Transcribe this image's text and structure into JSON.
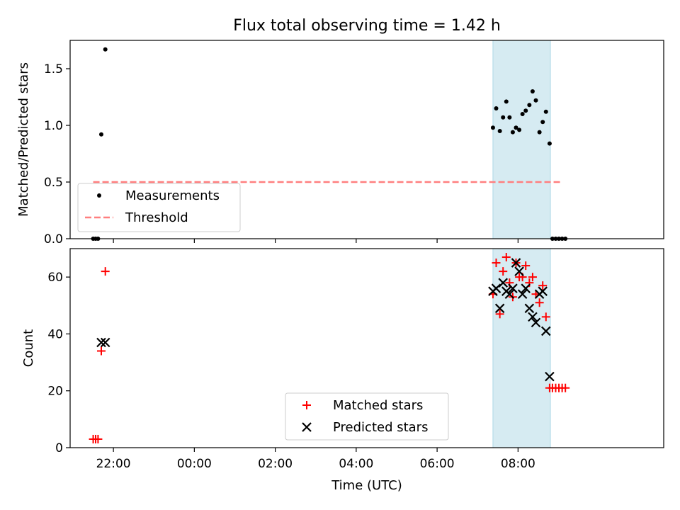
{
  "chart_data": [
    {
      "type": "scatter",
      "title": "Flux total observing time = 1.42 h",
      "ylabel": "Matched/Predicted stars",
      "xlabel": "",
      "x_unit": "hours relative to 00:00 UTC",
      "xlim": [
        -3.07,
        11.6
      ],
      "ylim": [
        0.0,
        1.75
      ],
      "yticks": [
        0.0,
        0.5,
        1.0,
        1.5
      ],
      "grid": false,
      "shaded_interval": {
        "x": [
          7.38,
          8.8
        ],
        "color": "#add8e6"
      },
      "legend": {
        "placement": "lower-left"
      },
      "series": [
        {
          "name": "Measurements",
          "marker": "dot",
          "color": "#000000",
          "points": [
            [
              -2.5,
              0.0
            ],
            [
              -2.44,
              0.0
            ],
            [
              -2.38,
              0.0
            ],
            [
              -2.3,
              0.92
            ],
            [
              -2.2,
              1.67
            ],
            [
              7.38,
              0.98
            ],
            [
              7.46,
              1.15
            ],
            [
              7.55,
              0.95
            ],
            [
              7.63,
              1.07
            ],
            [
              7.71,
              1.21
            ],
            [
              7.79,
              1.07
            ],
            [
              7.87,
              0.94
            ],
            [
              7.95,
              0.98
            ],
            [
              8.03,
              0.96
            ],
            [
              8.11,
              1.1
            ],
            [
              8.19,
              1.13
            ],
            [
              8.28,
              1.18
            ],
            [
              8.36,
              1.3
            ],
            [
              8.44,
              1.22
            ],
            [
              8.53,
              0.94
            ],
            [
              8.61,
              1.03
            ],
            [
              8.69,
              1.12
            ],
            [
              8.78,
              0.84
            ],
            [
              8.85,
              0.0
            ],
            [
              8.93,
              0.0
            ],
            [
              9.01,
              0.0
            ],
            [
              9.09,
              0.0
            ],
            [
              9.17,
              0.0
            ]
          ]
        },
        {
          "name": "Threshold",
          "style": "dashed",
          "color": "#ff7f7f",
          "points": [
            [
              -2.5,
              0.5
            ],
            [
              9.1,
              0.5
            ]
          ]
        }
      ]
    },
    {
      "type": "scatter",
      "title": "",
      "ylabel": "Count",
      "xlabel": "Time (UTC)",
      "x_unit": "hours relative to 00:00 UTC",
      "xlim": [
        -3.07,
        11.6
      ],
      "ylim": [
        0,
        70
      ],
      "yticks": [
        0,
        20,
        40,
        60
      ],
      "xticks": [
        -2,
        0,
        2,
        4,
        6,
        8
      ],
      "xtick_labels": [
        "22:00",
        "00:00",
        "02:00",
        "04:00",
        "06:00",
        "08:00"
      ],
      "grid": false,
      "shaded_interval": {
        "x": [
          7.38,
          8.8
        ],
        "color": "#add8e6"
      },
      "legend": {
        "placement": "lower-center"
      },
      "series": [
        {
          "name": "Matched stars",
          "marker": "plus",
          "color": "#ff0000",
          "points": [
            [
              -2.5,
              3
            ],
            [
              -2.44,
              3
            ],
            [
              -2.38,
              3
            ],
            [
              -2.3,
              34
            ],
            [
              -2.2,
              62
            ],
            [
              7.38,
              54
            ],
            [
              7.46,
              65
            ],
            [
              7.55,
              47
            ],
            [
              7.63,
              62
            ],
            [
              7.71,
              67
            ],
            [
              7.79,
              58
            ],
            [
              7.87,
              53
            ],
            [
              7.95,
              65
            ],
            [
              8.03,
              60
            ],
            [
              8.11,
              60
            ],
            [
              8.19,
              64
            ],
            [
              8.28,
              58
            ],
            [
              8.36,
              60
            ],
            [
              8.44,
              54
            ],
            [
              8.53,
              51
            ],
            [
              8.61,
              57
            ],
            [
              8.69,
              46
            ],
            [
              8.78,
              21
            ],
            [
              8.85,
              21
            ],
            [
              8.93,
              21
            ],
            [
              9.01,
              21
            ],
            [
              9.09,
              21
            ],
            [
              9.17,
              21
            ]
          ]
        },
        {
          "name": "Predicted stars",
          "marker": "x",
          "color": "#000000",
          "points": [
            [
              -2.3,
              37
            ],
            [
              -2.2,
              37
            ],
            [
              7.38,
              55
            ],
            [
              7.46,
              56
            ],
            [
              7.55,
              49
            ],
            [
              7.63,
              58
            ],
            [
              7.71,
              55
            ],
            [
              7.79,
              54
            ],
            [
              7.87,
              56
            ],
            [
              7.95,
              65
            ],
            [
              8.03,
              62
            ],
            [
              8.11,
              54
            ],
            [
              8.19,
              56
            ],
            [
              8.28,
              49
            ],
            [
              8.36,
              46
            ],
            [
              8.44,
              44
            ],
            [
              8.53,
              54
            ],
            [
              8.61,
              55
            ],
            [
              8.69,
              41
            ],
            [
              8.78,
              25
            ]
          ]
        }
      ]
    }
  ]
}
